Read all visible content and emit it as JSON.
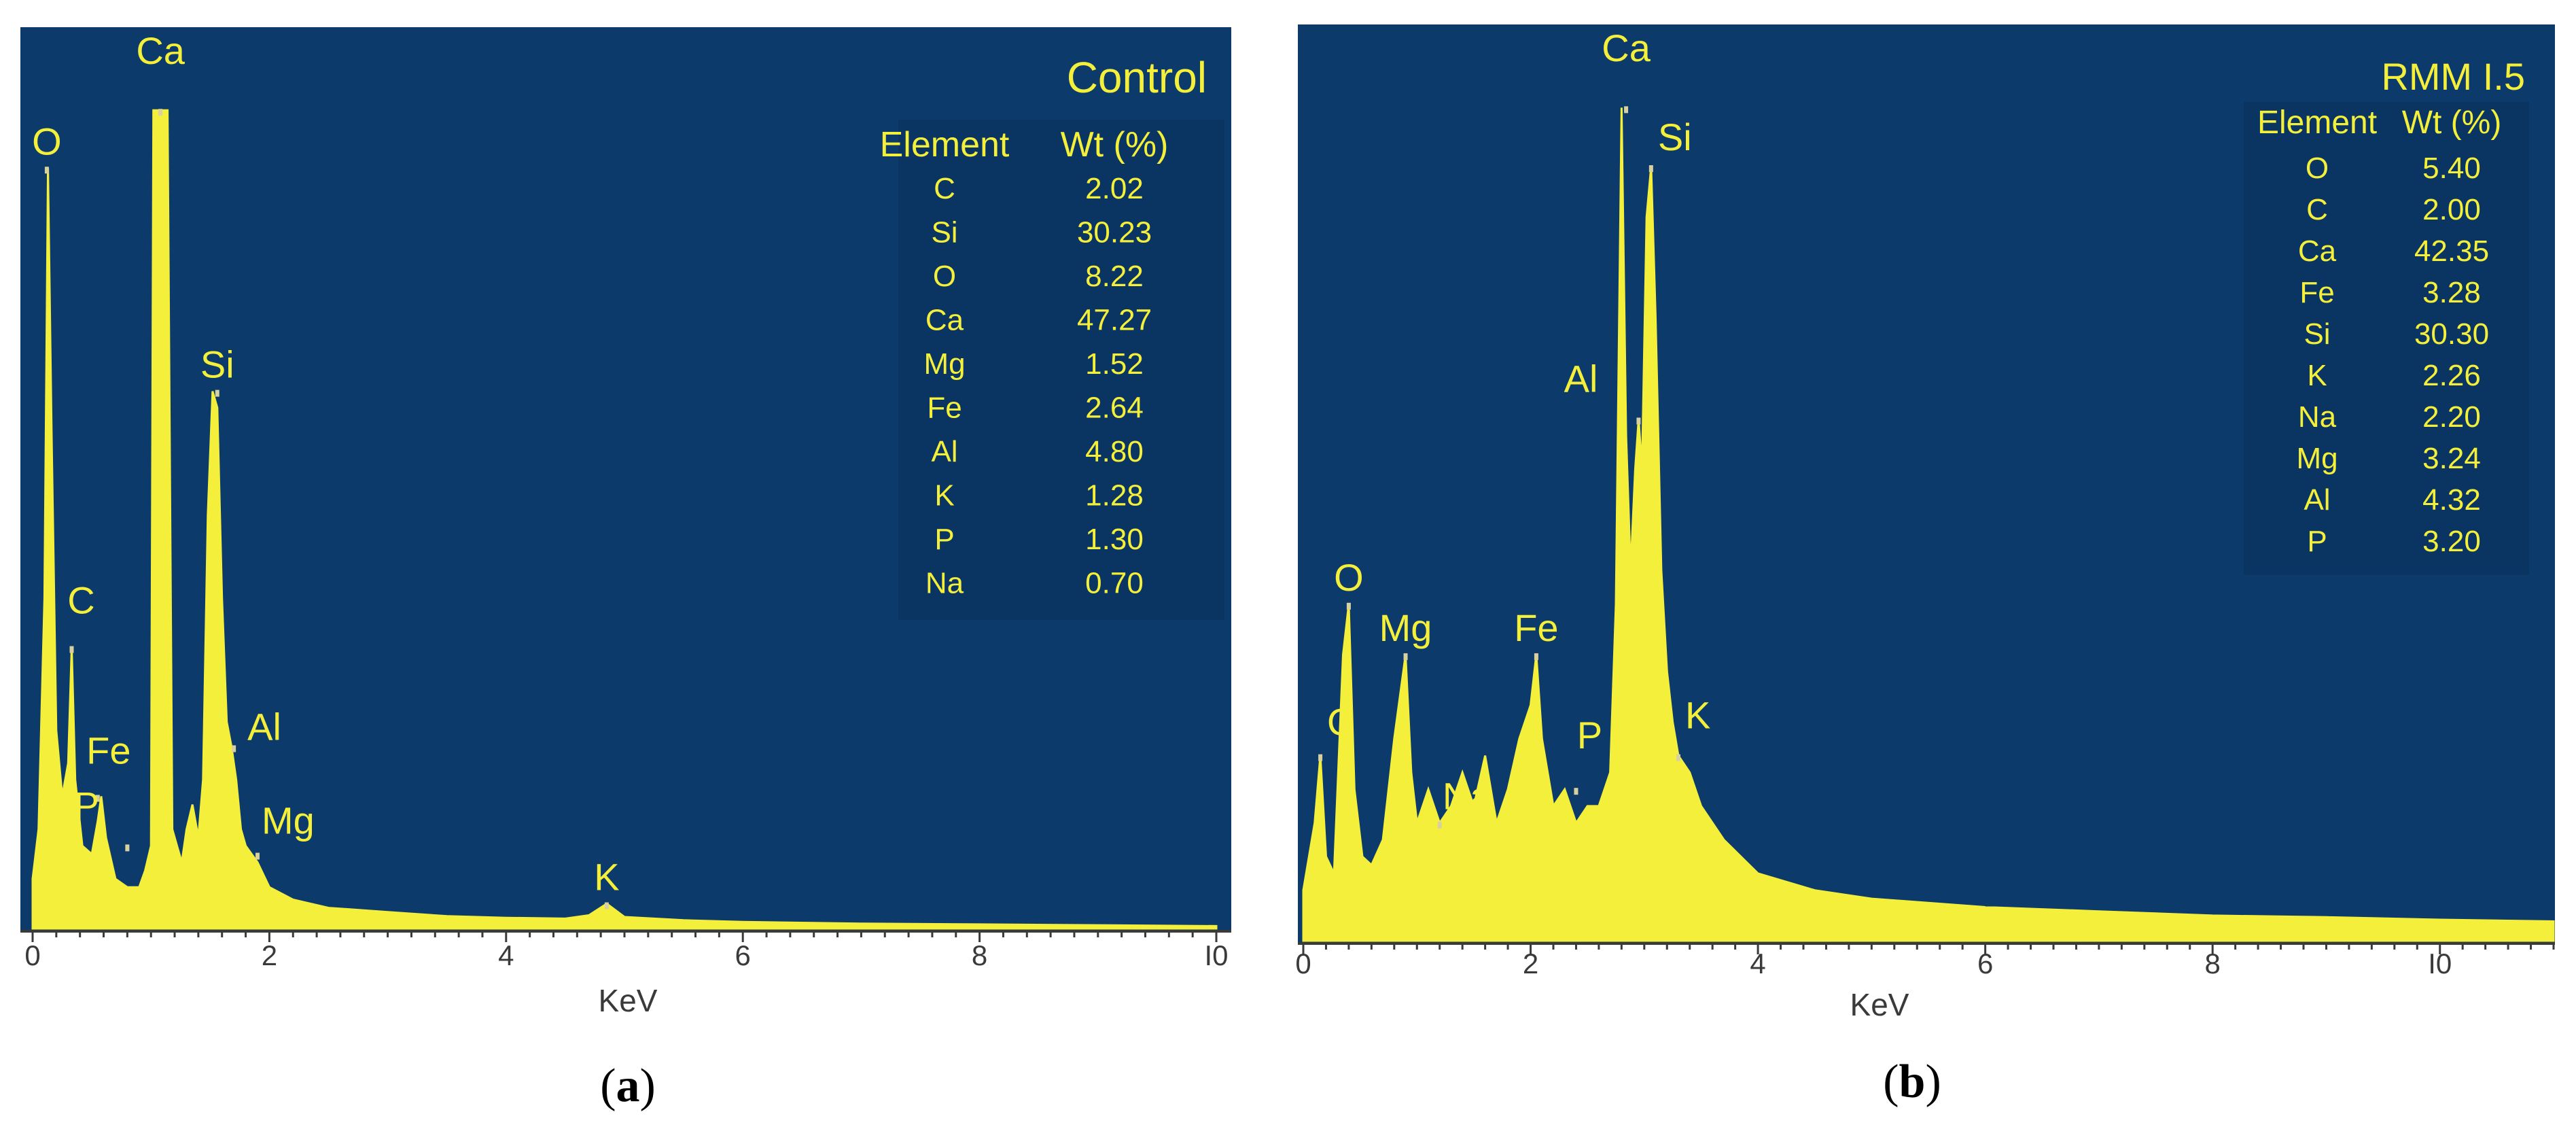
{
  "colors": {
    "plot_bg": "#0c3a6b",
    "spectrum": "#f4ef3a",
    "text": "#f4ef3a",
    "axis": "#3a3a3a"
  },
  "chart_data": [
    {
      "type": "area",
      "title": "Control",
      "caption": "a",
      "xlabel": "KeV",
      "ylabel": "",
      "xlim": [
        0,
        10
      ],
      "xticks": [
        "0",
        "2",
        "4",
        "6",
        "8",
        "I0"
      ],
      "grid": false,
      "spectrum": {
        "x": [
          0.0,
          0.05,
          0.1,
          0.13,
          0.16,
          0.2,
          0.25,
          0.3,
          0.33,
          0.36,
          0.42,
          0.5,
          0.55,
          0.58,
          0.62,
          0.7,
          0.8,
          0.9,
          0.95,
          1.0,
          1.02,
          1.06,
          1.1,
          1.14,
          1.18,
          1.22,
          1.26,
          1.3,
          1.35,
          1.4,
          1.44,
          1.48,
          1.52,
          1.56,
          1.6,
          1.64,
          1.68,
          1.72,
          1.76,
          1.8,
          1.9,
          2.0,
          2.2,
          2.5,
          3.0,
          3.5,
          4.0,
          4.5,
          4.7,
          4.85,
          5.0,
          5.5,
          6.0,
          7.0,
          8.0,
          9.0,
          10.0
        ],
        "y": [
          6,
          12,
          40,
          92,
          60,
          24,
          16,
          20,
          34,
          18,
          10,
          9,
          13,
          16,
          11,
          6,
          5,
          5,
          7,
          10,
          99,
          99,
          99,
          99,
          12,
          10,
          8,
          12,
          15,
          11,
          18,
          50,
          65,
          63,
          40,
          25,
          22,
          18,
          12,
          10,
          8,
          5,
          3.5,
          2.5,
          2,
          1.5,
          1.3,
          1.2,
          1.6,
          3,
          1.4,
          1,
          0.8,
          0.6,
          0.5,
          0.4,
          0.3
        ]
      },
      "peaks": [
        {
          "label": "O",
          "x": 0.12,
          "y": 92
        },
        {
          "label": "Ca",
          "x": 1.08,
          "y": 99
        },
        {
          "label": "Si",
          "x": 1.56,
          "y": 65
        },
        {
          "label": "C",
          "x": 0.33,
          "y": 34
        },
        {
          "label": "Fe",
          "x": 0.55,
          "y": 16
        },
        {
          "label": "P",
          "x": 0.8,
          "y": 10
        },
        {
          "label": "Al",
          "x": 1.7,
          "y": 22
        },
        {
          "label": "Mg",
          "x": 1.9,
          "y": 9
        },
        {
          "label": "K",
          "x": 4.85,
          "y": 3
        }
      ],
      "table": {
        "header": [
          "Element",
          "Wt (%)"
        ],
        "rows": [
          [
            "C",
            "2.02"
          ],
          [
            "Si",
            "30.23"
          ],
          [
            "O",
            "8.22"
          ],
          [
            "Ca",
            "47.27"
          ],
          [
            "Mg",
            "1.52"
          ],
          [
            "Fe",
            "2.64"
          ],
          [
            "Al",
            "4.80"
          ],
          [
            "K",
            "1.28"
          ],
          [
            "P",
            "1.30"
          ],
          [
            "Na",
            "0.70"
          ]
        ]
      }
    },
    {
      "type": "area",
      "title": "RMM I.5",
      "caption": "b",
      "xlabel": "KeV",
      "ylabel": "",
      "xlim": [
        0,
        11
      ],
      "xticks": [
        "0",
        "2",
        "4",
        "6",
        "8",
        "I0"
      ],
      "grid": false,
      "spectrum": {
        "x": [
          0.0,
          0.1,
          0.15,
          0.2,
          0.27,
          0.35,
          0.4,
          0.45,
          0.52,
          0.6,
          0.7,
          0.8,
          0.9,
          0.95,
          1.0,
          1.1,
          1.2,
          1.3,
          1.4,
          1.5,
          1.6,
          1.7,
          1.8,
          1.9,
          2.0,
          2.05,
          2.1,
          2.2,
          2.3,
          2.4,
          2.5,
          2.6,
          2.7,
          2.75,
          2.8,
          2.84,
          2.88,
          2.92,
          2.95,
          2.98,
          3.02,
          3.06,
          3.1,
          3.15,
          3.2,
          3.25,
          3.3,
          3.4,
          3.5,
          3.7,
          4.0,
          4.5,
          5.0,
          6.0,
          7.0,
          8.0,
          9.0,
          10.0,
          11.0
        ],
        "y": [
          6,
          14,
          22,
          10,
          8,
          34,
          40,
          18,
          10,
          9,
          12,
          24,
          34,
          20,
          14,
          18,
          14,
          16,
          20,
          16,
          22,
          14,
          18,
          24,
          28,
          34,
          24,
          16,
          18,
          14,
          16,
          16,
          20,
          40,
          99,
          60,
          44,
          56,
          62,
          56,
          86,
          92,
          74,
          44,
          32,
          26,
          22,
          20,
          16,
          12,
          8,
          6,
          5,
          4,
          3.5,
          3,
          2.8,
          2.5,
          2.3
        ]
      },
      "peaks": [
        {
          "label": "Ca",
          "x": 2.84,
          "y": 99
        },
        {
          "label": "Si",
          "x": 3.06,
          "y": 92
        },
        {
          "label": "Al",
          "x": 2.95,
          "y": 62
        },
        {
          "label": "O",
          "x": 0.4,
          "y": 40
        },
        {
          "label": "Mg",
          "x": 0.9,
          "y": 34
        },
        {
          "label": "Fe",
          "x": 2.05,
          "y": 34
        },
        {
          "label": "C",
          "x": 0.15,
          "y": 22
        },
        {
          "label": "Na",
          "x": 1.2,
          "y": 14
        },
        {
          "label": "P",
          "x": 2.4,
          "y": 18
        },
        {
          "label": "K",
          "x": 3.3,
          "y": 22
        }
      ],
      "table": {
        "header": [
          "Element",
          "Wt (%)"
        ],
        "rows": [
          [
            "O",
            "5.40"
          ],
          [
            "C",
            "2.00"
          ],
          [
            "Ca",
            "42.35"
          ],
          [
            "Fe",
            "3.28"
          ],
          [
            "Si",
            "30.30"
          ],
          [
            "K",
            "2.26"
          ],
          [
            "Na",
            "2.20"
          ],
          [
            "Mg",
            "3.24"
          ],
          [
            "Al",
            "4.32"
          ],
          [
            "P",
            "3.20"
          ]
        ]
      }
    }
  ]
}
